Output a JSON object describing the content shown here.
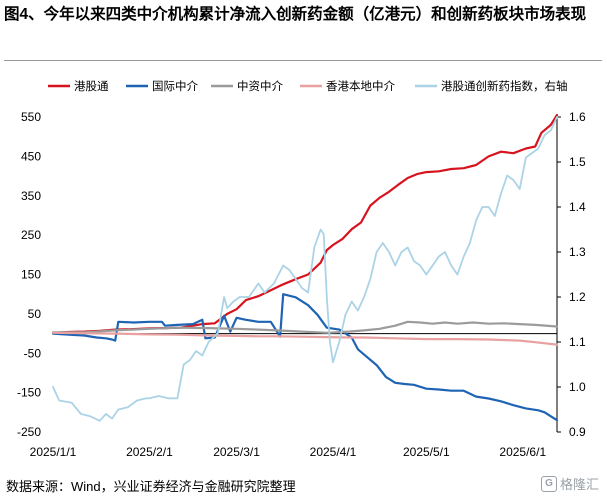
{
  "title": "图4、今年以来四类中介机构累计净流入创新药金额（亿港元）和创新药板块市场表现",
  "source": "数据来源：Wind，兴业证券经济与金融研究院整理",
  "watermark": "格隆汇",
  "watermark_icon": "G",
  "chart_data": {
    "type": "line",
    "title": "今年以来四类中介机构累计净流入创新药金额（亿港元）和创新药板块市场表现",
    "legend_position": "top",
    "xlabel": "",
    "ylabel": "亿港元",
    "y2label": "港股通创新药指数",
    "x_ticks": [
      "2025/1/1",
      "2025/2/1",
      "2025/3/1",
      "2025/4/1",
      "2025/5/1",
      "2025/6/1"
    ],
    "x_tick_days": [
      0,
      31,
      59,
      90,
      120,
      151
    ],
    "x_range_days": [
      0,
      162
    ],
    "ylim": [
      -250,
      550
    ],
    "yticks": [
      -250,
      -150,
      -50,
      50,
      150,
      250,
      350,
      450,
      550
    ],
    "y2lim": [
      0.9,
      1.6
    ],
    "y2ticks": [
      0.9,
      1.0,
      1.1,
      1.2,
      1.3,
      1.4,
      1.5,
      1.6
    ],
    "series": [
      {
        "name": "港股通",
        "axis": "left",
        "color": "#d7141e",
        "points": [
          [
            0,
            2
          ],
          [
            5,
            4
          ],
          [
            10,
            5
          ],
          [
            15,
            7
          ],
          [
            20,
            10
          ],
          [
            25,
            11
          ],
          [
            31,
            13
          ],
          [
            36,
            14
          ],
          [
            41,
            15
          ],
          [
            45,
            20
          ],
          [
            48,
            24
          ],
          [
            52,
            26
          ],
          [
            56,
            50
          ],
          [
            59,
            62
          ],
          [
            62,
            85
          ],
          [
            66,
            95
          ],
          [
            70,
            110
          ],
          [
            74,
            125
          ],
          [
            78,
            138
          ],
          [
            82,
            150
          ],
          [
            86,
            180
          ],
          [
            88,
            212
          ],
          [
            90,
            225
          ],
          [
            93,
            240
          ],
          [
            96,
            265
          ],
          [
            99,
            282
          ],
          [
            102,
            325
          ],
          [
            105,
            345
          ],
          [
            108,
            360
          ],
          [
            111,
            378
          ],
          [
            114,
            395
          ],
          [
            117,
            405
          ],
          [
            120,
            410
          ],
          [
            124,
            412
          ],
          [
            128,
            418
          ],
          [
            132,
            420
          ],
          [
            136,
            428
          ],
          [
            140,
            450
          ],
          [
            144,
            462
          ],
          [
            148,
            458
          ],
          [
            152,
            470
          ],
          [
            155,
            475
          ],
          [
            157,
            510
          ],
          [
            160,
            530
          ],
          [
            162,
            555
          ]
        ]
      },
      {
        "name": "国际中介",
        "axis": "left",
        "color": "#1f64b4",
        "points": [
          [
            0,
            0
          ],
          [
            5,
            -3
          ],
          [
            10,
            -5
          ],
          [
            14,
            -10
          ],
          [
            17,
            -12
          ],
          [
            19,
            -15
          ],
          [
            20,
            -18
          ],
          [
            21,
            30
          ],
          [
            26,
            28
          ],
          [
            31,
            30
          ],
          [
            35,
            30
          ],
          [
            36,
            20
          ],
          [
            40,
            22
          ],
          [
            45,
            24
          ],
          [
            48,
            35
          ],
          [
            49,
            -12
          ],
          [
            52,
            -10
          ],
          [
            55,
            45
          ],
          [
            57,
            5
          ],
          [
            59,
            40
          ],
          [
            62,
            35
          ],
          [
            66,
            30
          ],
          [
            70,
            30
          ],
          [
            73,
            -8
          ],
          [
            74,
            100
          ],
          [
            78,
            92
          ],
          [
            82,
            72
          ],
          [
            85,
            48
          ],
          [
            88,
            15
          ],
          [
            92,
            10
          ],
          [
            96,
            -10
          ],
          [
            98,
            -40
          ],
          [
            101,
            -60
          ],
          [
            104,
            -80
          ],
          [
            107,
            -110
          ],
          [
            110,
            -125
          ],
          [
            113,
            -128
          ],
          [
            116,
            -130
          ],
          [
            120,
            -140
          ],
          [
            124,
            -142
          ],
          [
            128,
            -145
          ],
          [
            132,
            -145
          ],
          [
            136,
            -160
          ],
          [
            140,
            -165
          ],
          [
            144,
            -172
          ],
          [
            148,
            -182
          ],
          [
            152,
            -190
          ],
          [
            156,
            -195
          ],
          [
            158,
            -200
          ],
          [
            160,
            -210
          ],
          [
            162,
            -220
          ]
        ]
      },
      {
        "name": "中资中介",
        "axis": "left",
        "color": "#9b9b9b",
        "points": [
          [
            0,
            3
          ],
          [
            10,
            3
          ],
          [
            20,
            8
          ],
          [
            31,
            12
          ],
          [
            40,
            15
          ],
          [
            50,
            14
          ],
          [
            59,
            12
          ],
          [
            66,
            10
          ],
          [
            72,
            8
          ],
          [
            80,
            5
          ],
          [
            88,
            2
          ],
          [
            95,
            5
          ],
          [
            100,
            8
          ],
          [
            105,
            12
          ],
          [
            110,
            20
          ],
          [
            114,
            30
          ],
          [
            118,
            28
          ],
          [
            122,
            25
          ],
          [
            126,
            28
          ],
          [
            130,
            25
          ],
          [
            135,
            28
          ],
          [
            140,
            25
          ],
          [
            145,
            26
          ],
          [
            150,
            24
          ],
          [
            155,
            22
          ],
          [
            162,
            18
          ]
        ]
      },
      {
        "name": "香港本地中介",
        "axis": "left",
        "color": "#e8a0a0",
        "points": [
          [
            0,
            2
          ],
          [
            10,
            1
          ],
          [
            20,
            0
          ],
          [
            31,
            -2
          ],
          [
            40,
            -3
          ],
          [
            50,
            -5
          ],
          [
            59,
            -6
          ],
          [
            66,
            -7
          ],
          [
            72,
            -7
          ],
          [
            80,
            -8
          ],
          [
            88,
            -9
          ],
          [
            95,
            -10
          ],
          [
            100,
            -10
          ],
          [
            110,
            -12
          ],
          [
            120,
            -14
          ],
          [
            130,
            -14
          ],
          [
            140,
            -15
          ],
          [
            150,
            -18
          ],
          [
            155,
            -22
          ],
          [
            162,
            -28
          ]
        ]
      },
      {
        "name": "港股通创新药指数，右轴",
        "axis": "right",
        "color": "#abd3e6",
        "points": [
          [
            0,
            1.0
          ],
          [
            2,
            0.97
          ],
          [
            6,
            0.965
          ],
          [
            9,
            0.94
          ],
          [
            12,
            0.935
          ],
          [
            15,
            0.925
          ],
          [
            17,
            0.94
          ],
          [
            19,
            0.93
          ],
          [
            21,
            0.95
          ],
          [
            24,
            0.955
          ],
          [
            27,
            0.97
          ],
          [
            30,
            0.975
          ],
          [
            31,
            0.975
          ],
          [
            34,
            0.98
          ],
          [
            37,
            0.975
          ],
          [
            40,
            0.975
          ],
          [
            42,
            1.05
          ],
          [
            44,
            1.06
          ],
          [
            46,
            1.08
          ],
          [
            48,
            1.07
          ],
          [
            50,
            1.1
          ],
          [
            53,
            1.12
          ],
          [
            55,
            1.2
          ],
          [
            56,
            1.175
          ],
          [
            58,
            1.19
          ],
          [
            60,
            1.2
          ],
          [
            63,
            1.2
          ],
          [
            66,
            1.23
          ],
          [
            68,
            1.21
          ],
          [
            71,
            1.23
          ],
          [
            74,
            1.27
          ],
          [
            76,
            1.26
          ],
          [
            78,
            1.24
          ],
          [
            80,
            1.22
          ],
          [
            82,
            1.21
          ],
          [
            84,
            1.31
          ],
          [
            86,
            1.35
          ],
          [
            87,
            1.34
          ],
          [
            88,
            1.2
          ],
          [
            89,
            1.1
          ],
          [
            90,
            1.055
          ],
          [
            92,
            1.1
          ],
          [
            94,
            1.16
          ],
          [
            96,
            1.19
          ],
          [
            98,
            1.17
          ],
          [
            100,
            1.2
          ],
          [
            102,
            1.24
          ],
          [
            104,
            1.3
          ],
          [
            106,
            1.32
          ],
          [
            108,
            1.3
          ],
          [
            110,
            1.27
          ],
          [
            112,
            1.3
          ],
          [
            114,
            1.31
          ],
          [
            116,
            1.28
          ],
          [
            118,
            1.27
          ],
          [
            120,
            1.25
          ],
          [
            122,
            1.27
          ],
          [
            124,
            1.29
          ],
          [
            126,
            1.3
          ],
          [
            128,
            1.27
          ],
          [
            130,
            1.25
          ],
          [
            132,
            1.29
          ],
          [
            134,
            1.32
          ],
          [
            136,
            1.37
          ],
          [
            138,
            1.4
          ],
          [
            140,
            1.4
          ],
          [
            142,
            1.38
          ],
          [
            144,
            1.43
          ],
          [
            146,
            1.47
          ],
          [
            148,
            1.46
          ],
          [
            150,
            1.44
          ],
          [
            152,
            1.51
          ],
          [
            154,
            1.52
          ],
          [
            156,
            1.53
          ],
          [
            158,
            1.56
          ],
          [
            160,
            1.57
          ],
          [
            162,
            1.6
          ]
        ]
      }
    ]
  }
}
